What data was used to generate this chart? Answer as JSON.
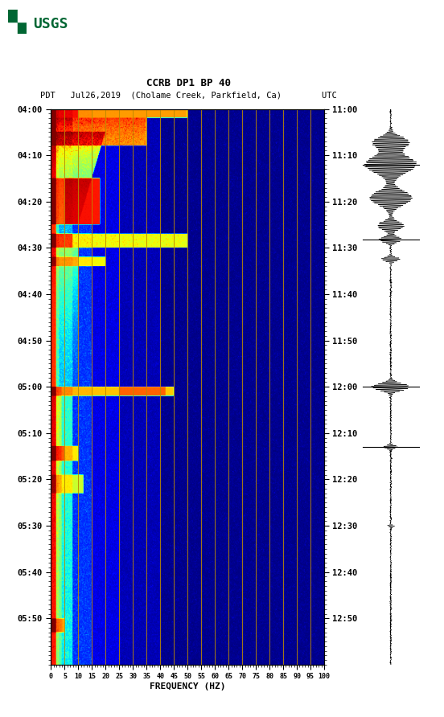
{
  "title_line1": "CCRB DP1 BP 40",
  "title_line2": "PDT   Jul26,2019  (Cholame Creek, Parkfield, Ca)        UTC",
  "xlabel": "FREQUENCY (HZ)",
  "freq_ticks": [
    0,
    5,
    10,
    15,
    20,
    25,
    30,
    35,
    40,
    45,
    50,
    55,
    60,
    65,
    70,
    75,
    80,
    85,
    90,
    95,
    100
  ],
  "left_time_labels": [
    "04:00",
    "04:10",
    "04:20",
    "04:30",
    "04:40",
    "04:50",
    "05:00",
    "05:10",
    "05:20",
    "05:30",
    "05:40",
    "05:50"
  ],
  "right_time_labels": [
    "11:00",
    "11:10",
    "11:20",
    "11:30",
    "11:40",
    "11:50",
    "12:00",
    "12:10",
    "12:20",
    "12:30",
    "12:40",
    "12:50"
  ],
  "vertical_grid_freqs": [
    5,
    10,
    15,
    20,
    25,
    30,
    35,
    40,
    45,
    50,
    55,
    60,
    65,
    70,
    75,
    80,
    85,
    90,
    95
  ],
  "background_color": "#ffffff",
  "grid_line_color": "#bb8800",
  "usgs_green": "#006633",
  "fig_width": 5.52,
  "fig_height": 8.92,
  "dpi": 100
}
